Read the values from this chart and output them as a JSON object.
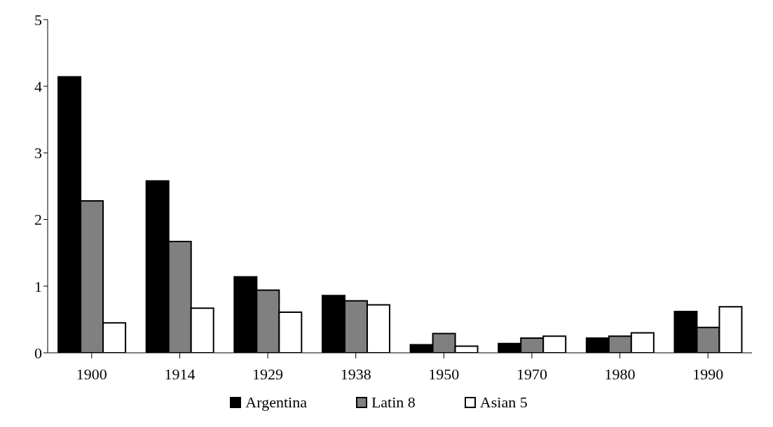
{
  "chart_data": {
    "type": "bar",
    "categories": [
      "1900",
      "1914",
      "1929",
      "1938",
      "1950",
      "1970",
      "1980",
      "1990"
    ],
    "series": [
      {
        "name": "Argentina",
        "color": "#000000",
        "values": [
          4.14,
          2.58,
          1.14,
          0.86,
          0.12,
          0.14,
          0.22,
          0.62
        ]
      },
      {
        "name": "Latin 8",
        "color": "#808080",
        "values": [
          2.28,
          1.67,
          0.94,
          0.78,
          0.29,
          0.22,
          0.25,
          0.38
        ]
      },
      {
        "name": "Asian 5",
        "color": "#ffffff",
        "values": [
          0.45,
          0.67,
          0.61,
          0.72,
          0.1,
          0.25,
          0.3,
          0.69
        ]
      }
    ],
    "ylim": [
      0,
      5
    ],
    "yticks": [
      0,
      1,
      2,
      3,
      4,
      5
    ],
    "legend": "bottom"
  }
}
